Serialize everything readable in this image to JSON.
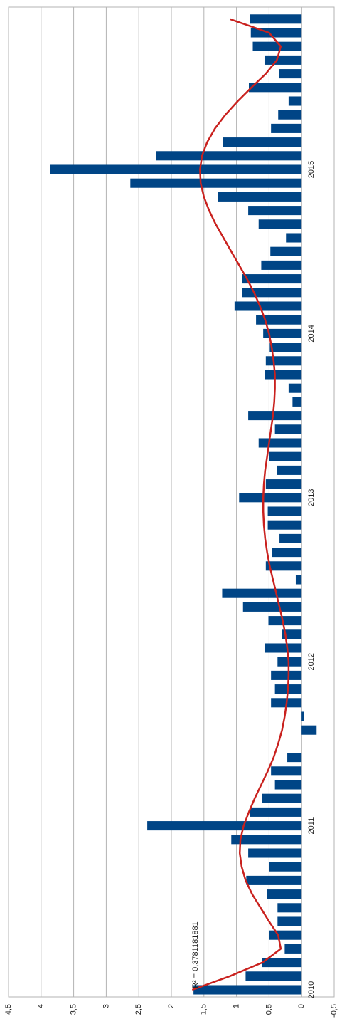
{
  "chart_data": {
    "type": "bar",
    "categories": [
      "2010",
      null,
      null,
      null,
      null,
      null,
      null,
      null,
      null,
      null,
      null,
      null,
      "2011",
      null,
      null,
      null,
      null,
      null,
      null,
      null,
      null,
      null,
      null,
      null,
      "2012",
      null,
      null,
      null,
      null,
      null,
      null,
      null,
      null,
      null,
      null,
      null,
      "2013",
      null,
      null,
      null,
      null,
      null,
      null,
      null,
      null,
      null,
      null,
      null,
      "2014",
      null,
      null,
      null,
      null,
      null,
      null,
      null,
      null,
      null,
      null,
      null,
      "2015",
      null,
      null,
      null,
      null,
      null,
      null,
      null,
      null,
      null,
      null,
      null
    ],
    "values": [
      1.66,
      0.86,
      0.61,
      0.26,
      0.5,
      0.37,
      0.37,
      0.53,
      0.85,
      0.5,
      0.82,
      1.08,
      2.37,
      0.79,
      0.61,
      0.41,
      0.47,
      0.22,
      0,
      -0.23,
      -0.04,
      0.47,
      0.41,
      0.47,
      0.37,
      0.57,
      0.3,
      0.51,
      0.9,
      1.22,
      0.09,
      0.55,
      0.45,
      0.34,
      0.52,
      0.52,
      0.96,
      0.55,
      0.38,
      0.5,
      0.66,
      0.41,
      0.82,
      0.14,
      0.2,
      0.56,
      0.55,
      0.49,
      0.59,
      0.7,
      1.03,
      0.91,
      0.91,
      0.62,
      0.48,
      0.24,
      0.66,
      0.82,
      1.29,
      2.63,
      3.86,
      2.23,
      1.21,
      0.47,
      0.36,
      0.2,
      0.81,
      0.35,
      0.57,
      0.75,
      0.78,
      0.79
    ],
    "color": "#004586",
    "trendline": {
      "color": "#c9211e",
      "label": "R² = 0,3781181881",
      "values": [
        1.68,
        1.1,
        0.6,
        0.32,
        0.36,
        0.5,
        0.63,
        0.76,
        0.86,
        0.92,
        0.95,
        0.94,
        0.89,
        0.81,
        0.72,
        0.62,
        0.52,
        0.43,
        0.36,
        0.3,
        0.26,
        0.23,
        0.21,
        0.2,
        0.2,
        0.22,
        0.25,
        0.29,
        0.34,
        0.39,
        0.44,
        0.49,
        0.53,
        0.56,
        0.58,
        0.59,
        0.59,
        0.58,
        0.56,
        0.53,
        0.5,
        0.47,
        0.44,
        0.42,
        0.41,
        0.41,
        0.43,
        0.46,
        0.5,
        0.56,
        0.64,
        0.73,
        0.84,
        0.96,
        1.08,
        1.2,
        1.32,
        1.42,
        1.5,
        1.55,
        1.56,
        1.53,
        1.45,
        1.33,
        1.17,
        0.98,
        0.77,
        0.55,
        0.38,
        0.32,
        0.5,
        1.1
      ]
    },
    "ylim": [
      -0.5,
      4.5
    ],
    "yticks": [
      {
        "value": -0.5,
        "label": "-0,5"
      },
      0,
      {
        "value": 0.5,
        "label": "0,5"
      },
      1,
      {
        "value": 1.5,
        "label": "1,5"
      },
      2,
      {
        "value": 2.5,
        "label": "2,5"
      },
      3,
      {
        "value": 3.5,
        "label": "3,5"
      },
      4,
      {
        "value": 4.5,
        "label": "4,5"
      }
    ],
    "grid": true
  }
}
